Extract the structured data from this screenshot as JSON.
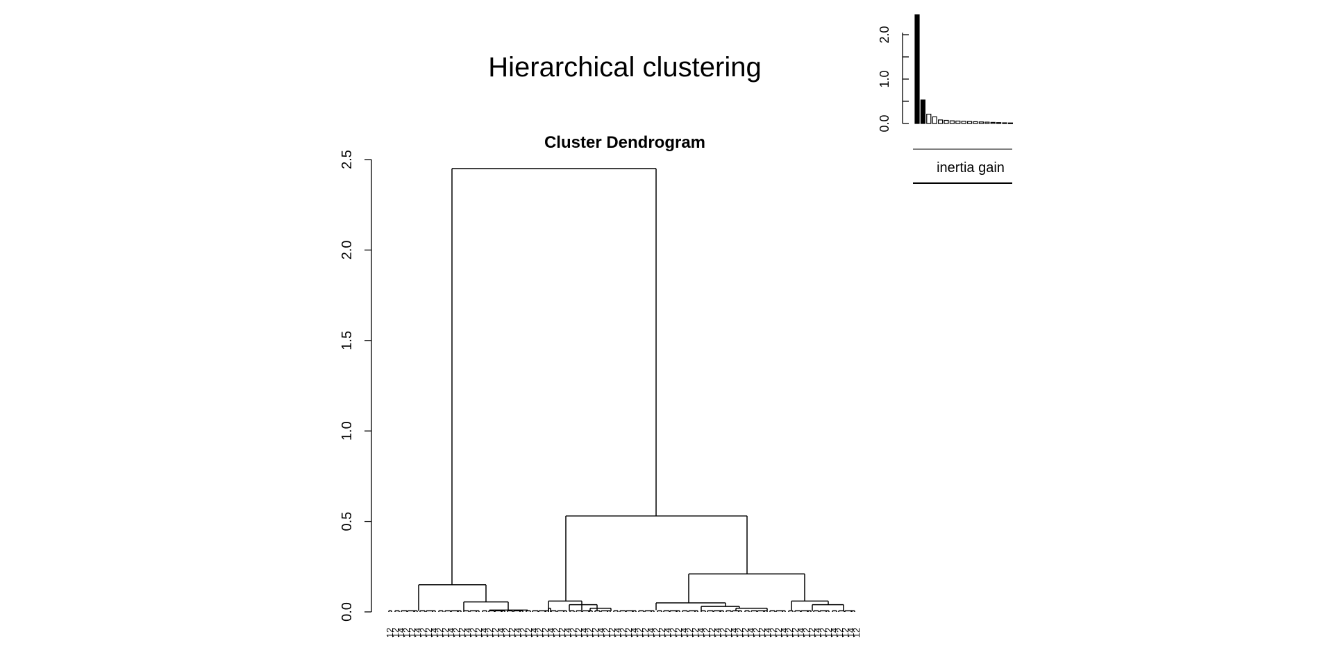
{
  "main_title": "Hierarchical clustering",
  "chart_data": [
    {
      "type": "dendrogram",
      "title": "Cluster Dendrogram",
      "xlabel": "",
      "ylabel": "",
      "ylim": [
        0,
        2.5
      ],
      "yticks": [
        "0.0",
        "0.5",
        "1.0",
        "1.5",
        "2.0",
        "2.5"
      ],
      "merge_heights": [
        2.45,
        0.53,
        0.21,
        0.15,
        0.06,
        0.055,
        0.05,
        0.06,
        0.04,
        0.03,
        0.02,
        0.015,
        0.01
      ],
      "leaf_labels_visible": [
        "1",
        "1",
        "1",
        "1",
        "1",
        "1",
        "1"
      ],
      "grid": false
    },
    {
      "type": "bar",
      "title": "inertia gain",
      "ylim": [
        0,
        2.5
      ],
      "yticks": [
        "0.0",
        "1.0",
        "2.0"
      ],
      "values": [
        2.45,
        0.53,
        0.21,
        0.15,
        0.08,
        0.07,
        0.06,
        0.055,
        0.05,
        0.045,
        0.04,
        0.035,
        0.03,
        0.025,
        0.02,
        0.015,
        0.012
      ],
      "highlighted_count": 2,
      "grid": false
    }
  ]
}
